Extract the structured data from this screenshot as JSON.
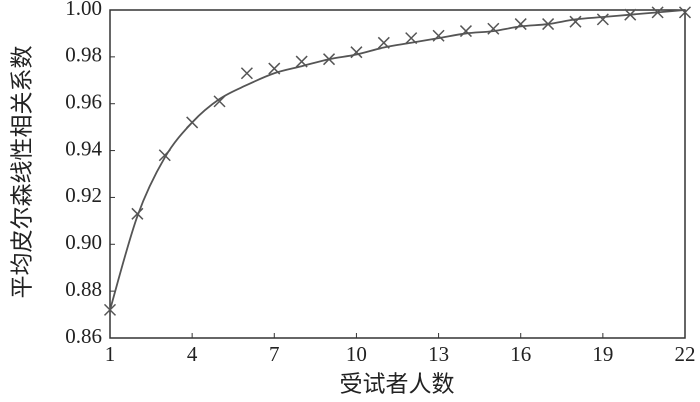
{
  "chart_data": {
    "type": "scatter",
    "xlabel": "受试者人数",
    "ylabel": "平均皮尔森线性相关系数",
    "x": [
      1,
      2,
      3,
      4,
      5,
      6,
      7,
      8,
      9,
      10,
      11,
      12,
      13,
      14,
      15,
      16,
      17,
      18,
      19,
      20,
      21,
      22
    ],
    "series": [
      {
        "mode": "markers",
        "color": "#555555",
        "values": [
          0.872,
          0.913,
          0.938,
          0.952,
          0.961,
          0.973,
          0.975,
          0.978,
          0.979,
          0.982,
          0.986,
          0.988,
          0.989,
          0.991,
          0.992,
          0.994,
          0.994,
          0.995,
          0.996,
          0.998,
          0.999,
          0.999
        ]
      },
      {
        "mode": "line",
        "color": "#555555",
        "values": [
          0.872,
          0.912,
          0.937,
          0.952,
          0.962,
          0.968,
          0.973,
          0.976,
          0.979,
          0.981,
          0.984,
          0.986,
          0.988,
          0.99,
          0.991,
          0.993,
          0.994,
          0.996,
          0.997,
          0.998,
          0.999,
          1.0
        ]
      }
    ],
    "xlim": [
      1,
      22
    ],
    "xticks": [
      1,
      4,
      7,
      10,
      13,
      16,
      19,
      22
    ],
    "ylim": [
      0.86,
      1
    ],
    "yticks": [
      0.86,
      0.88,
      {
        "value": 0.9,
        "label": "0.90"
      },
      0.92,
      0.94,
      0.96,
      0.98,
      {
        "value": 1,
        "label": "1.00"
      }
    ],
    "grid": false
  }
}
